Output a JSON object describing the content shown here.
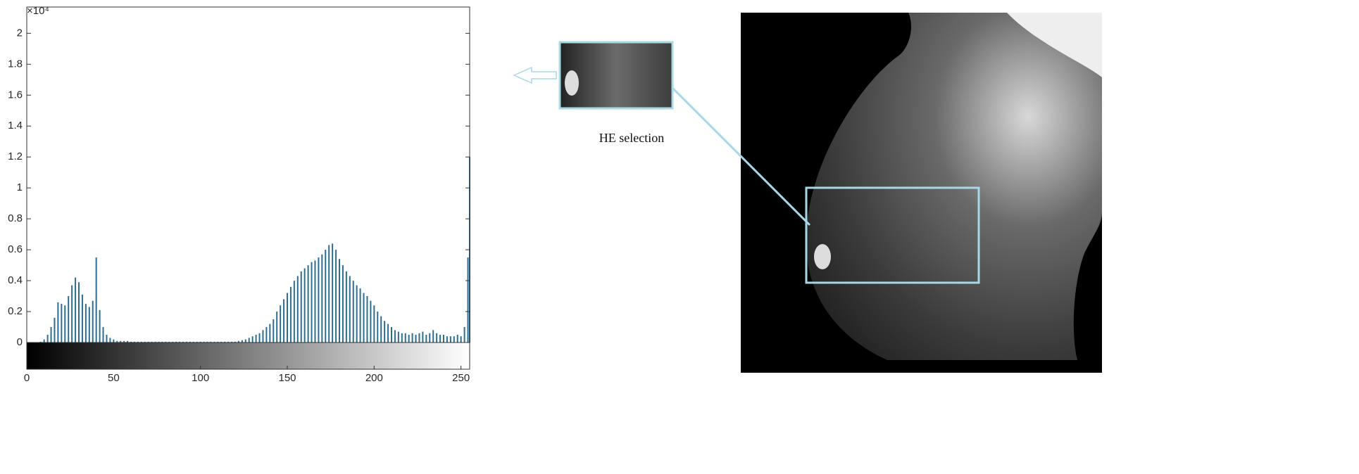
{
  "chart_data": {
    "type": "bar",
    "y_multiplier": "×10⁴",
    "x": [
      0,
      2,
      4,
      6,
      8,
      10,
      12,
      14,
      16,
      18,
      20,
      22,
      24,
      26,
      28,
      30,
      32,
      34,
      36,
      38,
      40,
      42,
      44,
      46,
      48,
      50,
      52,
      54,
      56,
      58,
      60,
      62,
      64,
      66,
      68,
      70,
      72,
      74,
      76,
      78,
      80,
      82,
      84,
      86,
      88,
      90,
      92,
      94,
      96,
      98,
      100,
      102,
      104,
      106,
      108,
      110,
      112,
      114,
      116,
      118,
      120,
      122,
      124,
      126,
      128,
      130,
      132,
      134,
      136,
      138,
      140,
      142,
      144,
      146,
      148,
      150,
      152,
      154,
      156,
      158,
      160,
      162,
      164,
      166,
      168,
      170,
      172,
      174,
      176,
      178,
      180,
      182,
      184,
      186,
      188,
      190,
      192,
      194,
      196,
      198,
      200,
      202,
      204,
      206,
      208,
      210,
      212,
      214,
      216,
      218,
      220,
      222,
      224,
      226,
      228,
      230,
      232,
      234,
      236,
      238,
      240,
      242,
      244,
      246,
      248,
      250,
      252,
      254,
      255
    ],
    "values": [
      0,
      0,
      0,
      0,
      0.005,
      0.02,
      0.05,
      0.1,
      0.16,
      0.26,
      0.25,
      0.24,
      0.3,
      0.37,
      0.42,
      0.39,
      0.31,
      0.25,
      0.23,
      0.27,
      0.55,
      0.21,
      0.1,
      0.05,
      0.03,
      0.02,
      0.01,
      0.01,
      0.01,
      0.01,
      0.005,
      0.005,
      0.005,
      0.005,
      0.005,
      0.005,
      0.005,
      0.005,
      0.005,
      0.005,
      0.005,
      0.005,
      0.005,
      0.005,
      0.005,
      0.005,
      0.005,
      0.005,
      0.005,
      0.005,
      0.005,
      0.005,
      0.005,
      0.005,
      0.005,
      0.005,
      0.005,
      0.005,
      0.005,
      0.005,
      0.005,
      0.01,
      0.015,
      0.02,
      0.03,
      0.04,
      0.05,
      0.06,
      0.08,
      0.1,
      0.12,
      0.15,
      0.2,
      0.24,
      0.28,
      0.32,
      0.36,
      0.4,
      0.43,
      0.46,
      0.48,
      0.5,
      0.52,
      0.53,
      0.55,
      0.57,
      0.6,
      0.63,
      0.64,
      0.6,
      0.54,
      0.5,
      0.46,
      0.43,
      0.4,
      0.37,
      0.35,
      0.32,
      0.3,
      0.27,
      0.24,
      0.2,
      0.17,
      0.14,
      0.12,
      0.1,
      0.08,
      0.07,
      0.06,
      0.06,
      0.05,
      0.06,
      0.05,
      0.06,
      0.07,
      0.05,
      0.06,
      0.08,
      0.06,
      0.05,
      0.05,
      0.04,
      0.04,
      0.04,
      0.05,
      0.04,
      0.1,
      0.55,
      1.2
    ],
    "color": "#2b6e91",
    "xlim": [
      0,
      255
    ],
    "xticks": [
      0,
      50,
      100,
      150,
      200,
      250
    ],
    "ylim": [
      0,
      2.17
    ],
    "yticks": [
      0,
      0.2,
      0.4,
      0.6,
      0.8,
      1,
      1.2,
      1.4,
      1.6,
      1.8,
      2
    ],
    "annotation": "HE selection"
  }
}
